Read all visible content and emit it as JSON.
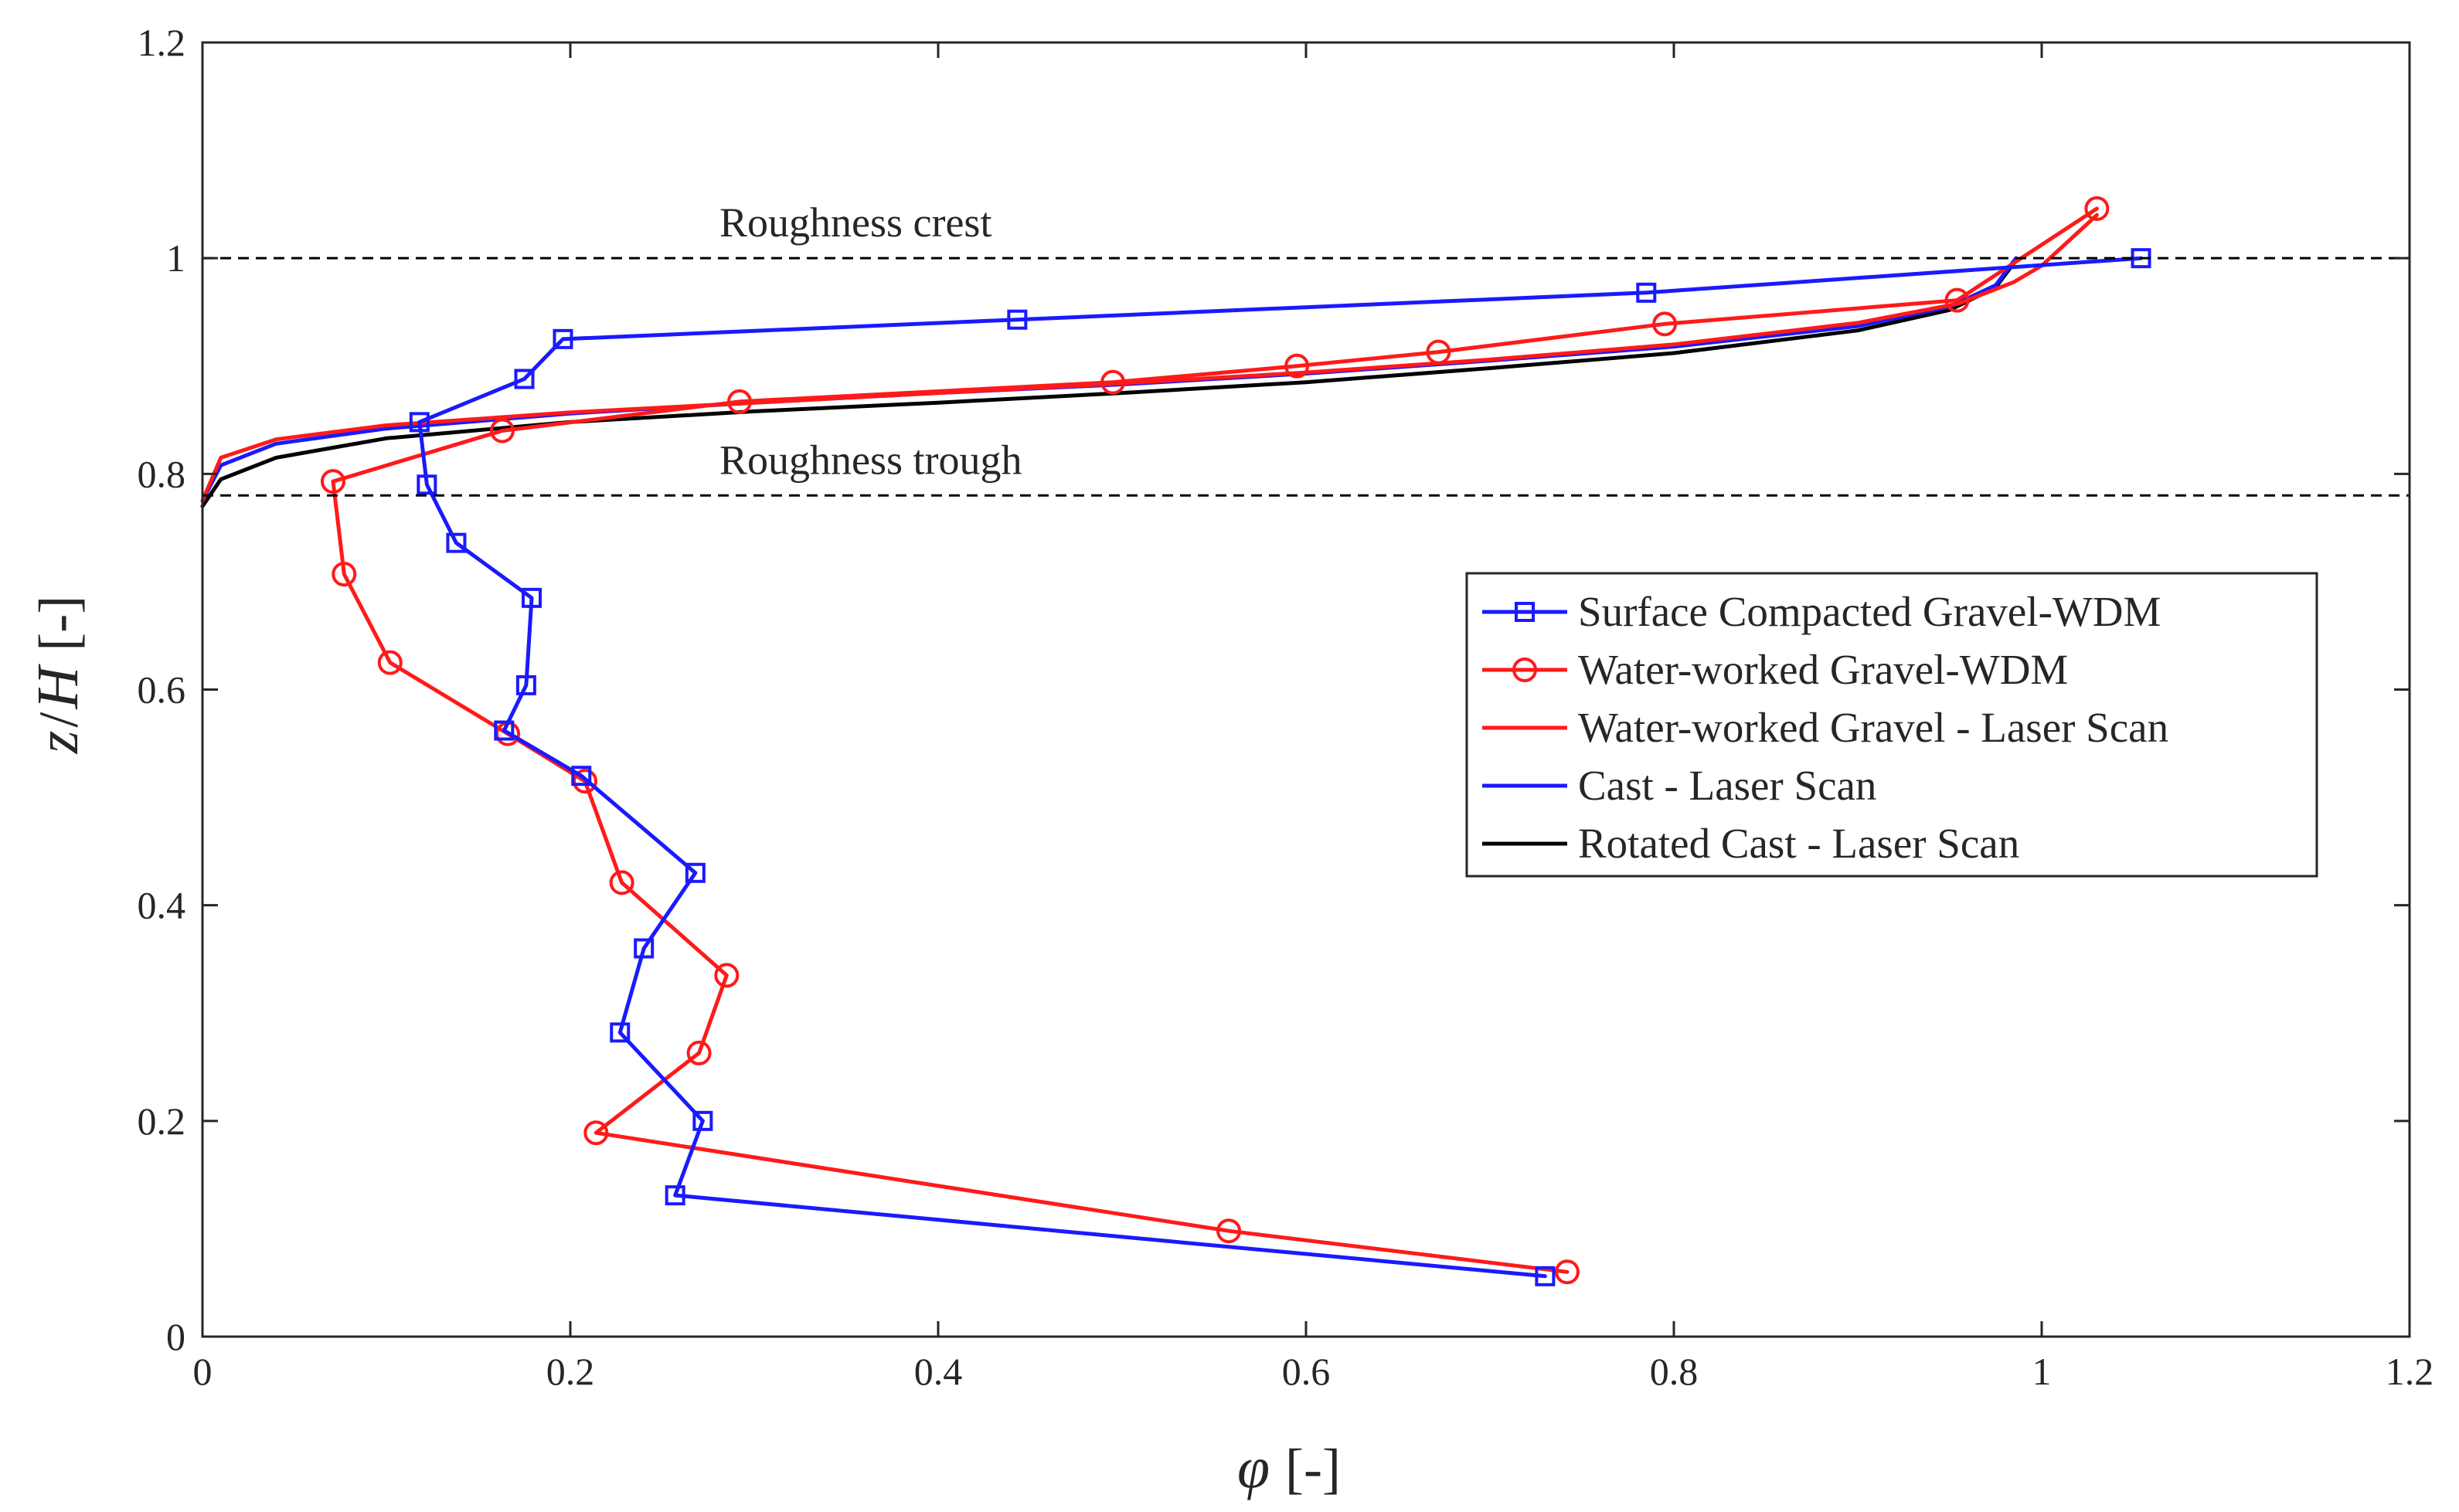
{
  "chart_data": {
    "type": "line",
    "title": "",
    "xlabel": {
      "symbol": "φ",
      "unit": "[-]"
    },
    "ylabel": {
      "symbol_1": "z",
      "slash": "/",
      "symbol_2": "H",
      "unit": "[-]"
    },
    "xlim": [
      0,
      1.2
    ],
    "ylim": [
      0,
      1.2
    ],
    "xticks": [
      0,
      0.2,
      0.4,
      0.6,
      0.8,
      1,
      1.2
    ],
    "yticks": [
      0,
      0.2,
      0.4,
      0.6,
      0.8,
      1,
      1.2
    ],
    "xtick_labels": [
      "0",
      "0.2",
      "0.4",
      "0.6",
      "0.8",
      "1",
      "1.2"
    ],
    "ytick_labels": [
      "0",
      "0.2",
      "0.4",
      "0.6",
      "0.8",
      "1",
      "1.2"
    ],
    "grid": false,
    "legend_position": "center-right",
    "reference_lines": [
      {
        "name": "crest",
        "y": 1.0,
        "label": "Roughness crest",
        "label_x": 0.3
      },
      {
        "name": "trough",
        "y": 0.78,
        "label": "Roughness trough",
        "label_x": 0.3
      }
    ],
    "series": [
      {
        "name": "Surface Compacted Gravel-WDM",
        "color": "#1a1aff",
        "marker": "square",
        "x": [
          0.73,
          0.257,
          0.272,
          0.227,
          0.24,
          0.268,
          0.206,
          0.164,
          0.176,
          0.179,
          0.138,
          0.122,
          0.118,
          0.175,
          0.196,
          0.443,
          0.785,
          1.054
        ],
        "y": [
          0.056,
          0.131,
          0.2,
          0.282,
          0.36,
          0.43,
          0.52,
          0.562,
          0.604,
          0.685,
          0.736,
          0.79,
          0.848,
          0.888,
          0.925,
          0.943,
          0.968,
          1.0
        ]
      },
      {
        "name": "Water-worked Gravel-WDM",
        "color": "#ff1a1a",
        "marker": "circle",
        "x": [
          0.742,
          0.558,
          0.214,
          0.27,
          0.285,
          0.228,
          0.208,
          0.166,
          0.102,
          0.077,
          0.071,
          0.163,
          0.292,
          0.495,
          0.595,
          0.672,
          0.795,
          0.954,
          1.03
        ],
        "y": [
          0.06,
          0.098,
          0.189,
          0.263,
          0.335,
          0.421,
          0.515,
          0.559,
          0.625,
          0.707,
          0.793,
          0.84,
          0.867,
          0.885,
          0.9,
          0.913,
          0.939,
          0.961,
          1.046
        ]
      },
      {
        "name": "Water-worked Gravel - Laser Scan",
        "color": "#ff1a1a",
        "marker": "none",
        "x": [
          0,
          0.01,
          0.04,
          0.1,
          0.2,
          0.3,
          0.4,
          0.5,
          0.6,
          0.7,
          0.8,
          0.9,
          0.955,
          0.985,
          1.0,
          1.03
        ],
        "y": [
          0.775,
          0.815,
          0.832,
          0.845,
          0.857,
          0.866,
          0.875,
          0.884,
          0.894,
          0.906,
          0.92,
          0.94,
          0.958,
          0.978,
          0.993,
          1.04
        ]
      },
      {
        "name": "Cast - Laser Scan",
        "color": "#1a1aff",
        "marker": "none",
        "x": [
          0,
          0.01,
          0.04,
          0.1,
          0.2,
          0.3,
          0.4,
          0.5,
          0.6,
          0.7,
          0.8,
          0.9,
          0.95,
          0.975,
          0.986
        ],
        "y": [
          0.775,
          0.808,
          0.828,
          0.842,
          0.856,
          0.866,
          0.875,
          0.883,
          0.893,
          0.905,
          0.918,
          0.937,
          0.955,
          0.975,
          1.0
        ]
      },
      {
        "name": "Rotated Cast - Laser Scan",
        "color": "#000000",
        "marker": "none",
        "x": [
          0,
          0.01,
          0.04,
          0.1,
          0.2,
          0.3,
          0.4,
          0.5,
          0.6,
          0.7,
          0.8,
          0.9,
          0.95,
          0.975,
          0.986
        ],
        "y": [
          0.77,
          0.795,
          0.815,
          0.833,
          0.848,
          0.858,
          0.866,
          0.875,
          0.885,
          0.898,
          0.912,
          0.933,
          0.952,
          0.973,
          0.998
        ]
      }
    ]
  }
}
